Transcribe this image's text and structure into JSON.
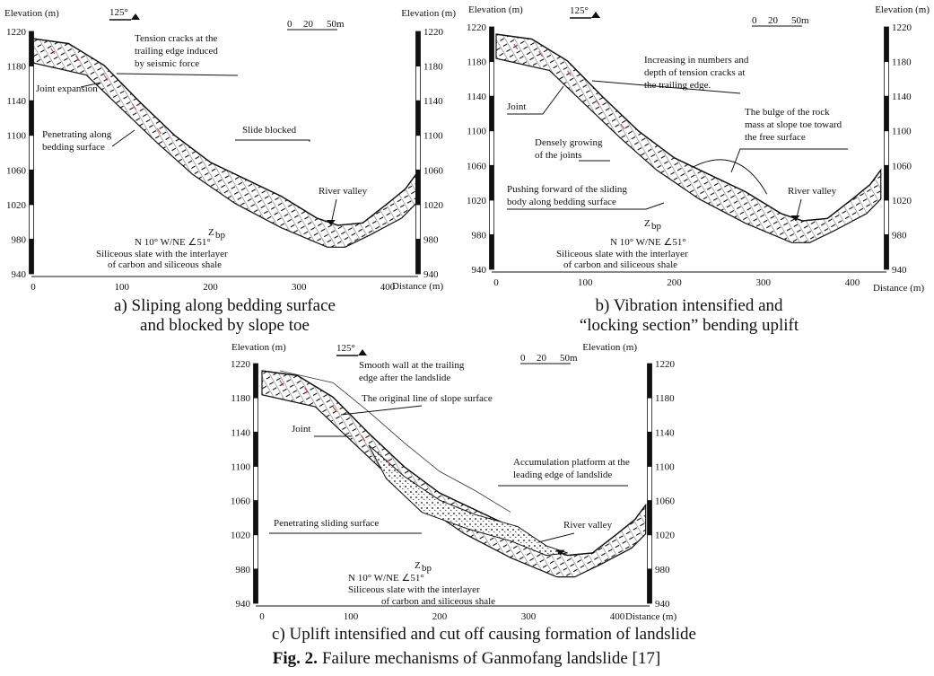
{
  "panels": [
    {
      "axis_label_left": "Elevation (m)",
      "axis_label_right": "Elevation (m)",
      "x_axis_label": "Distance (m)",
      "orientation": "125°",
      "scale": [
        "0",
        "20",
        "50m"
      ],
      "yticks": [
        940,
        980,
        1020,
        1060,
        1100,
        1140,
        1180,
        1220
      ],
      "xticks": [
        0,
        100,
        200,
        300,
        400
      ],
      "annotations": [
        [
          "Tension cracks at the",
          "trailing edge induced",
          "by seismic force"
        ],
        [
          "Joint expansion"
        ],
        [
          "Penetrating along",
          "bedding surface"
        ],
        [
          "Slide blocked"
        ],
        [
          "River valley"
        ]
      ],
      "formation": {
        "symbol": "Z",
        "subscript": "bp",
        "attitude": "N 10°  W/NE ∠51°",
        "lithology": [
          "Siliceous slate with the interlayer",
          "of carbon and siliceous shale"
        ]
      },
      "caption": [
        "a) Sliping along bedding surface",
        "and blocked by slope toe"
      ]
    },
    {
      "axis_label_left": "Elevation (m)",
      "axis_label_right": "Elevation (m)",
      "x_axis_label": "Distance (m)",
      "orientation": "125°",
      "scale": [
        "0",
        "20",
        "50m"
      ],
      "yticks": [
        940,
        980,
        1020,
        1060,
        1100,
        1140,
        1180,
        1220
      ],
      "xticks": [
        0,
        100,
        200,
        300,
        400
      ],
      "annotations": [
        [
          "Increasing in numbers and",
          "depth of tension cracks at",
          "the trailing edge."
        ],
        [
          "Joint"
        ],
        [
          "The bulge of the rock",
          "mass at slope toe toward",
          "the free surface"
        ],
        [
          "Densely growing",
          "of the joints"
        ],
        [
          "Pushing forward of the sliding",
          "body along bedding surface"
        ],
        [
          "River valley"
        ]
      ],
      "formation": {
        "symbol": "Z",
        "subscript": "bp",
        "attitude": "N 10°  W/NE ∠51°",
        "lithology": [
          "Siliceous slate with the interlayer",
          "of carbon and siliceous shale"
        ]
      },
      "caption": [
        "b) Vibration intensified and",
        "“locking section” bending uplift"
      ]
    },
    {
      "axis_label_left": "Elevation (m)",
      "axis_label_right": "Elevation (m)",
      "x_axis_label": "Distance (m)",
      "orientation": "125°",
      "scale": [
        "0",
        "20",
        "50m"
      ],
      "yticks": [
        940,
        980,
        1020,
        1060,
        1100,
        1140,
        1180,
        1220
      ],
      "xticks": [
        0,
        100,
        200,
        300,
        400
      ],
      "annotations": [
        [
          "Smooth wall at the trailing",
          "edge after the landslide"
        ],
        [
          "The original line of slope surface"
        ],
        [
          "Joint"
        ],
        [
          "Accumulation platform at the",
          "leading edge of landslide"
        ],
        [
          "Penetrating sliding surface"
        ],
        [
          "River valley"
        ]
      ],
      "formation": {
        "symbol": "Z",
        "subscript": "bp",
        "attitude": "N 10°  W/NE ∠51°",
        "lithology": [
          "Siliceous slate with the interlayer",
          "of carbon and siliceous shale"
        ]
      },
      "caption": [
        "c) Uplift intensified and cut off causing formation of landslide"
      ]
    }
  ],
  "figure_caption": {
    "label": "Fig. 2.",
    "text": "Failure mechanisms of Ganmofang landslide [17]"
  }
}
